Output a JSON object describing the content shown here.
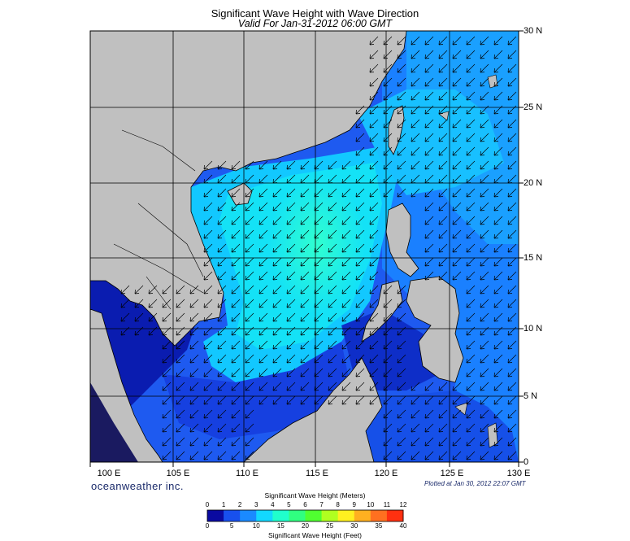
{
  "title": "Significant Wave Height with Wave Direction",
  "subtitle": "Valid For Jan-31-2012 06:00 GMT",
  "lat_labels": [
    "30 N",
    "25 N",
    "20 N",
    "15 N",
    "10 N",
    "5 N",
    "0"
  ],
  "lon_labels": [
    "100 E",
    "105 E",
    "110 E",
    "115 E",
    "120 E",
    "125 E",
    "130 E"
  ],
  "brand": "oceanweather inc.",
  "plotted": "Plotted at Jan 30, 2012 22:07 GMT",
  "colorbar": {
    "meters_title": "Significant Wave Height (Meters)",
    "feet_title": "Significant Wave Height (Feet)",
    "meters_ticks": [
      "0",
      "1",
      "2",
      "3",
      "4",
      "5",
      "6",
      "7",
      "8",
      "9",
      "10",
      "11",
      "12"
    ],
    "feet_ticks": [
      "0",
      "5",
      "10",
      "15",
      "20",
      "25",
      "30",
      "35",
      "40"
    ],
    "colors": [
      "#0a0aa0",
      "#1850ee",
      "#1a8aff",
      "#12d8ff",
      "#20ffcc",
      "#30ff80",
      "#50ff30",
      "#b0ff20",
      "#fff020",
      "#ffb020",
      "#ff7020",
      "#ff3010"
    ]
  },
  "colors": {
    "land": "#c0c0c0",
    "deep_sea": "#1e50ee",
    "shallow_sea": "#0a1cb0",
    "mid_sea": "#1a88ff",
    "high_sea": "#14e0f8",
    "peak_sea": "#2af5d8"
  },
  "wave_direction": "from-northeast"
}
